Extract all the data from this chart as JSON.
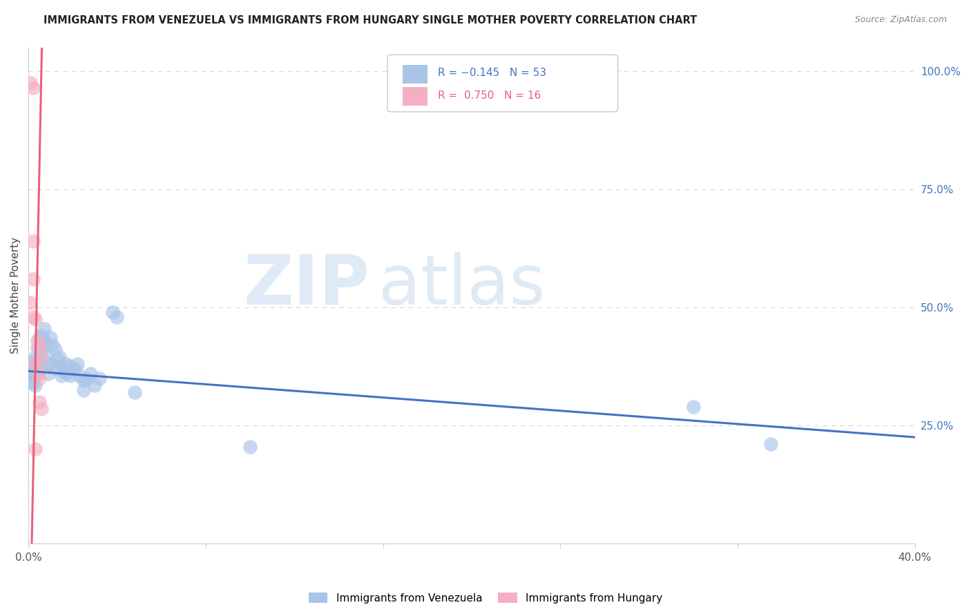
{
  "title": "IMMIGRANTS FROM VENEZUELA VS IMMIGRANTS FROM HUNGARY SINGLE MOTHER POVERTY CORRELATION CHART",
  "source": "Source: ZipAtlas.com",
  "ylabel": "Single Mother Poverty",
  "xlim": [
    0.0,
    0.4
  ],
  "ylim": [
    0.0,
    1.05
  ],
  "xticks": [
    0.0,
    0.08,
    0.16,
    0.24,
    0.32,
    0.4
  ],
  "xtick_labels": [
    "0.0%",
    "",
    "",
    "",
    "",
    "40.0%"
  ],
  "ytick_labels_right": [
    "100.0%",
    "75.0%",
    "50.0%",
    "25.0%"
  ],
  "yticks_right": [
    1.0,
    0.75,
    0.5,
    0.25
  ],
  "blue_color": "#a8c4e8",
  "pink_color": "#f4afc2",
  "blue_line_color": "#4472c4",
  "pink_line_color": "#e8607a",
  "blue_scatter": [
    [
      0.001,
      0.385
    ],
    [
      0.001,
      0.36
    ],
    [
      0.002,
      0.375
    ],
    [
      0.002,
      0.355
    ],
    [
      0.002,
      0.34
    ],
    [
      0.003,
      0.395
    ],
    [
      0.003,
      0.375
    ],
    [
      0.003,
      0.355
    ],
    [
      0.003,
      0.335
    ],
    [
      0.004,
      0.415
    ],
    [
      0.004,
      0.385
    ],
    [
      0.004,
      0.36
    ],
    [
      0.005,
      0.435
    ],
    [
      0.005,
      0.395
    ],
    [
      0.005,
      0.37
    ],
    [
      0.006,
      0.415
    ],
    [
      0.006,
      0.44
    ],
    [
      0.007,
      0.455
    ],
    [
      0.007,
      0.43
    ],
    [
      0.008,
      0.42
    ],
    [
      0.008,
      0.395
    ],
    [
      0.009,
      0.38
    ],
    [
      0.009,
      0.36
    ],
    [
      0.01,
      0.435
    ],
    [
      0.01,
      0.38
    ],
    [
      0.011,
      0.42
    ],
    [
      0.012,
      0.41
    ],
    [
      0.013,
      0.39
    ],
    [
      0.013,
      0.37
    ],
    [
      0.014,
      0.395
    ],
    [
      0.015,
      0.375
    ],
    [
      0.015,
      0.355
    ],
    [
      0.016,
      0.365
    ],
    [
      0.017,
      0.38
    ],
    [
      0.017,
      0.36
    ],
    [
      0.018,
      0.375
    ],
    [
      0.019,
      0.355
    ],
    [
      0.02,
      0.37
    ],
    [
      0.021,
      0.37
    ],
    [
      0.022,
      0.38
    ],
    [
      0.023,
      0.355
    ],
    [
      0.025,
      0.345
    ],
    [
      0.025,
      0.325
    ],
    [
      0.026,
      0.35
    ],
    [
      0.028,
      0.36
    ],
    [
      0.03,
      0.335
    ],
    [
      0.032,
      0.35
    ],
    [
      0.038,
      0.49
    ],
    [
      0.04,
      0.48
    ],
    [
      0.048,
      0.32
    ],
    [
      0.1,
      0.205
    ],
    [
      0.3,
      0.29
    ],
    [
      0.335,
      0.21
    ]
  ],
  "pink_scatter": [
    [
      0.001,
      0.975
    ],
    [
      0.002,
      0.965
    ],
    [
      0.002,
      0.64
    ],
    [
      0.002,
      0.56
    ],
    [
      0.003,
      0.475
    ],
    [
      0.004,
      0.43
    ],
    [
      0.005,
      0.415
    ],
    [
      0.006,
      0.395
    ],
    [
      0.001,
      0.51
    ],
    [
      0.002,
      0.48
    ],
    [
      0.003,
      0.38
    ],
    [
      0.004,
      0.365
    ],
    [
      0.005,
      0.35
    ],
    [
      0.005,
      0.3
    ],
    [
      0.006,
      0.285
    ],
    [
      0.003,
      0.2
    ]
  ],
  "watermark_zip": "ZIP",
  "watermark_atlas": "atlas",
  "background_color": "#ffffff",
  "grid_color": "#d8d8d8",
  "legend_label_blue": "Immigrants from Venezuela",
  "legend_label_pink": "Immigrants from Hungary",
  "legend_r_blue": "R = −0.145",
  "legend_n_blue": "N = 53",
  "legend_r_pink": "R =  0.750",
  "legend_n_pink": "N = 16"
}
